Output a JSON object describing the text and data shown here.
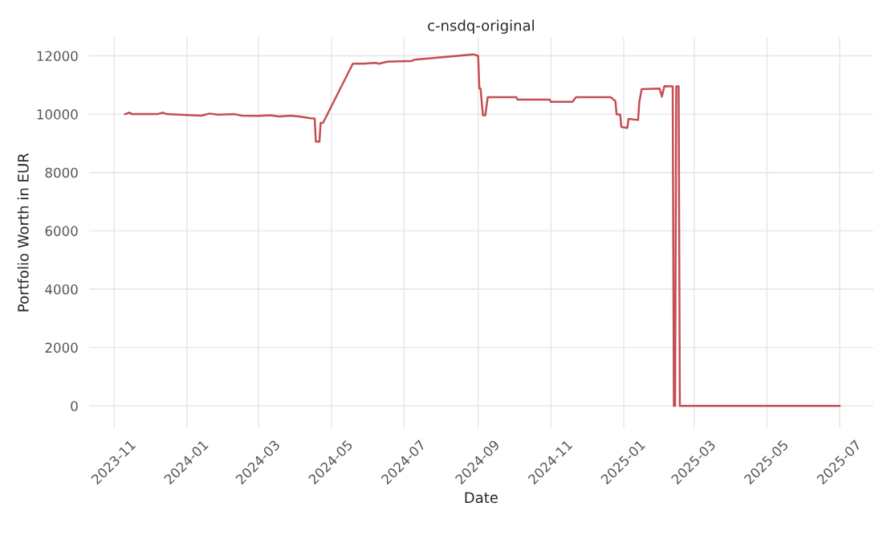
{
  "chart_data": {
    "type": "line",
    "title": "c-nsdq-original",
    "xlabel": "Date",
    "ylabel": "Portfolio Worth in EUR",
    "x": [
      "2023-11-10",
      "2023-11-14",
      "2023-11-16",
      "2023-12-07",
      "2023-12-12",
      "2023-12-15",
      "2024-01-13",
      "2024-01-20",
      "2024-01-27",
      "2024-02-10",
      "2024-02-16",
      "2024-03-01",
      "2024-03-11",
      "2024-03-18",
      "2024-03-28",
      "2024-04-04",
      "2024-04-14",
      "2024-04-17",
      "2024-04-18",
      "2024-04-21",
      "2024-04-22",
      "2024-04-24",
      "2024-05-19",
      "2024-05-28",
      "2024-06-07",
      "2024-06-10",
      "2024-06-17",
      "2024-07-07",
      "2024-07-10",
      "2024-08-28",
      "2024-09-01",
      "2024-09-02",
      "2024-09-03",
      "2024-09-05",
      "2024-09-07",
      "2024-09-09",
      "2024-10-03",
      "2024-10-04",
      "2024-10-31",
      "2024-11-01",
      "2024-11-19",
      "2024-11-22",
      "2024-12-21",
      "2024-12-25",
      "2024-12-26",
      "2024-12-29",
      "2024-12-30",
      "2025-01-04",
      "2025-01-05",
      "2025-01-13",
      "2025-01-14",
      "2025-01-16",
      "2025-01-31",
      "2025-02-02",
      "2025-02-04",
      "2025-02-11",
      "2025-02-12",
      "2025-02-13",
      "2025-02-14",
      "2025-02-16",
      "2025-02-17",
      "2025-07-01"
    ],
    "series": [
      {
        "color": "#c44e52",
        "values": [
          10000,
          10050,
          10000,
          10000,
          10050,
          10000,
          9950,
          10020,
          9980,
          10000,
          9950,
          9940,
          9960,
          9920,
          9950,
          9920,
          9860,
          9850,
          9060,
          9060,
          9700,
          9700,
          11730,
          11730,
          11760,
          11730,
          11800,
          11820,
          11870,
          12050,
          12000,
          10880,
          10880,
          9960,
          9960,
          10580,
          10580,
          10500,
          10500,
          10420,
          10420,
          10580,
          10580,
          10450,
          9990,
          9990,
          9560,
          9530,
          9840,
          9800,
          10400,
          10860,
          10880,
          10600,
          10960,
          10950,
          0,
          0,
          10950,
          10950,
          0,
          0
        ]
      }
    ],
    "xlim": [
      "2023-10-11",
      "2025-07-29"
    ],
    "xticks": [
      {
        "value": "2023-11-01",
        "label": "2023-11"
      },
      {
        "value": "2024-01-01",
        "label": "2024-01"
      },
      {
        "value": "2024-03-01",
        "label": "2024-03"
      },
      {
        "value": "2024-05-01",
        "label": "2024-05"
      },
      {
        "value": "2024-07-01",
        "label": "2024-07"
      },
      {
        "value": "2024-09-01",
        "label": "2024-09"
      },
      {
        "value": "2024-11-01",
        "label": "2024-11"
      },
      {
        "value": "2025-01-01",
        "label": "2025-01"
      },
      {
        "value": "2025-03-01",
        "label": "2025-03"
      },
      {
        "value": "2025-05-01",
        "label": "2025-05"
      },
      {
        "value": "2025-07-01",
        "label": "2025-07"
      }
    ],
    "ylim": [
      -760,
      12630
    ],
    "yticks": [
      0,
      2000,
      4000,
      6000,
      8000,
      10000,
      12000
    ],
    "grid": true,
    "legend": false,
    "marker": "none",
    "line_style": "solid"
  }
}
